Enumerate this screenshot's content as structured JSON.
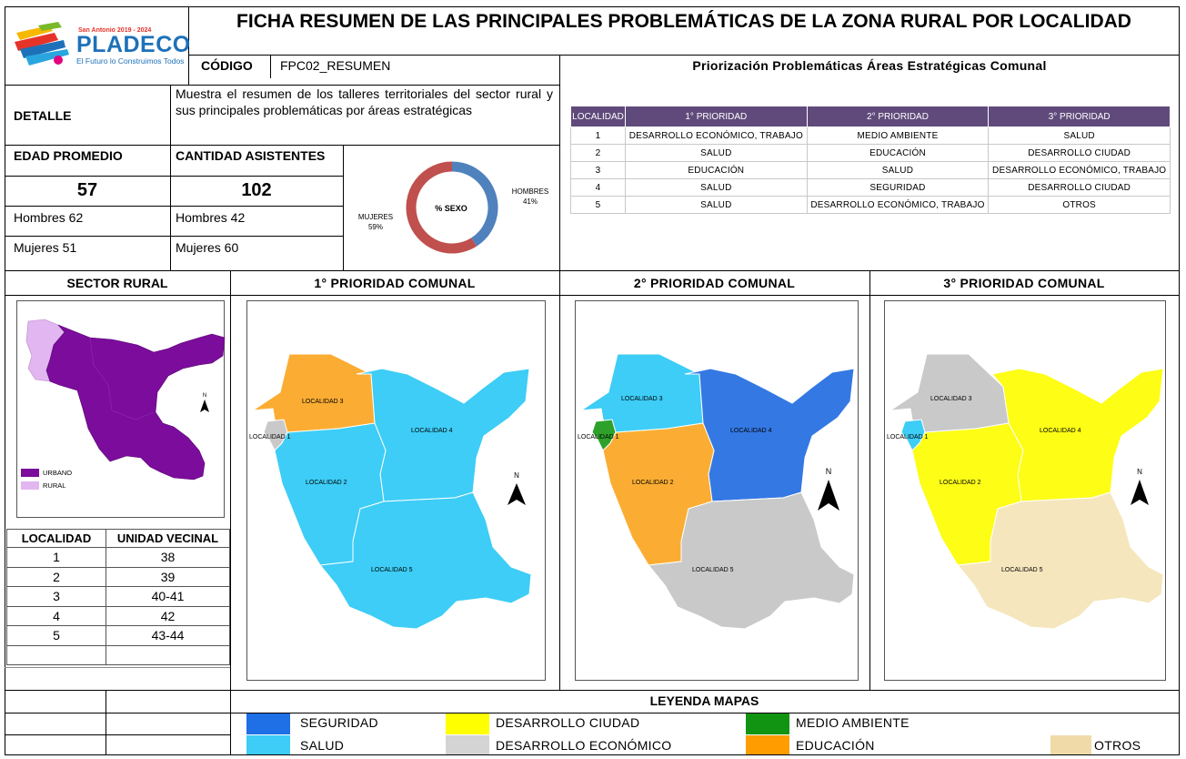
{
  "header": {
    "title": "FICHA RESUMEN DE LAS PRINCIPALES PROBLEMÁTICAS DE LA ZONA RURAL POR LOCALIDAD",
    "codigo_label": "CÓDIGO",
    "codigo_value": "FPC02_RESUMEN",
    "priorizacion_title": "Priorización Problemáticas Áreas Estratégicas Comunal"
  },
  "logo": {
    "top_text": "San Antonio 2019 - 2024",
    "name": "PLADECO",
    "slogan": "El Futuro lo Construimos Todos"
  },
  "detalle": {
    "label": "DETALLE",
    "text": "Muestra el resumen de los talleres territoriales del sector rural y sus principales problemáticas por áreas estratégicas"
  },
  "stats": {
    "edad_label": "EDAD PROMEDIO",
    "edad_value": "57",
    "edad_hombres": "Hombres 62",
    "edad_mujeres": "Mujeres  51",
    "asist_label": "CANTIDAD ASISTENTES",
    "asist_value": "102",
    "asist_hombres": "Hombres 42",
    "asist_mujeres": "Mujeres   60"
  },
  "chart_data": {
    "type": "pie",
    "title": "% SEXO",
    "series": [
      {
        "name": "HOMBRES",
        "value": 41,
        "label": "41%",
        "color": "#4f81bd"
      },
      {
        "name": "MUJERES",
        "value": 59,
        "label": "59%",
        "color": "#c0504d"
      }
    ]
  },
  "priority_table": {
    "headers": [
      "LOCALIDAD",
      "1° PRIORIDAD",
      "2° PRIORIDAD",
      "3° PRIORIDAD"
    ],
    "rows": [
      [
        "1",
        "DESARROLLO ECONÓMICO, TRABAJO",
        "MEDIO AMBIENTE",
        "SALUD"
      ],
      [
        "2",
        "SALUD",
        "EDUCACIÓN",
        "DESARROLLO CIUDAD"
      ],
      [
        "3",
        "EDUCACIÓN",
        "SALUD",
        "DESARROLLO ECONÓMICO, TRABAJO"
      ],
      [
        "4",
        "SALUD",
        "SEGURIDAD",
        "DESARROLLO CIUDAD"
      ],
      [
        "5",
        "SALUD",
        "DESARROLLO ECONÓMICO, TRABAJO",
        "OTROS"
      ]
    ]
  },
  "sections": {
    "sector_rural": "SECTOR RURAL",
    "p1": "1° PRIORIDAD COMUNAL",
    "p2": "2° PRIORIDAD COMUNAL",
    "p3": "3° PRIORIDAD COMUNAL",
    "leyenda": "LEYENDA MAPAS"
  },
  "sector_map": {
    "legend_urbano": "URBANO",
    "legend_rural": "RURAL",
    "urbano_color": "#7b0c9c",
    "rural_color": "#e2b6f0",
    "north": "N"
  },
  "uv_table": {
    "headers": [
      "LOCALIDAD",
      "UNIDAD VECINAL"
    ],
    "rows": [
      [
        "1",
        "38"
      ],
      [
        "2",
        "39"
      ],
      [
        "3",
        "40-41"
      ],
      [
        "4",
        "42"
      ],
      [
        "5",
        "43-44"
      ]
    ]
  },
  "maps": {
    "labels": {
      "l1": "LOCALIDAD 1",
      "l2": "LOCALIDAD 2",
      "l3": "LOCALIDAD 3",
      "l4": "LOCALIDAD 4",
      "l5": "LOCALIDAD 5",
      "north": "N"
    },
    "colors": {
      "seguridad": "#3478e3",
      "salud": "#3dcdf6",
      "desarrollo_ciudad": "#fdfd16",
      "desarrollo_economico": "#c9c9c9",
      "medio_ambiente": "#2ea12a",
      "educacion": "#fbad33",
      "otros": "#f5e6bd"
    }
  },
  "legend": [
    {
      "label": "SEGURIDAD",
      "color": "#1f6fe6"
    },
    {
      "label": "SALUD",
      "color": "#3dcdf6"
    },
    {
      "label": "DESARROLLO CIUDAD",
      "color": "#ffff00"
    },
    {
      "label": "DESARROLLO ECONÓMICO",
      "color": "#d4d4d4"
    },
    {
      "label": "MEDIO AMBIENTE",
      "color": "#119411"
    },
    {
      "label": "EDUCACIÓN",
      "color": "#ff9c00"
    },
    {
      "label": "OTROS",
      "color": "#f0dba8"
    }
  ]
}
